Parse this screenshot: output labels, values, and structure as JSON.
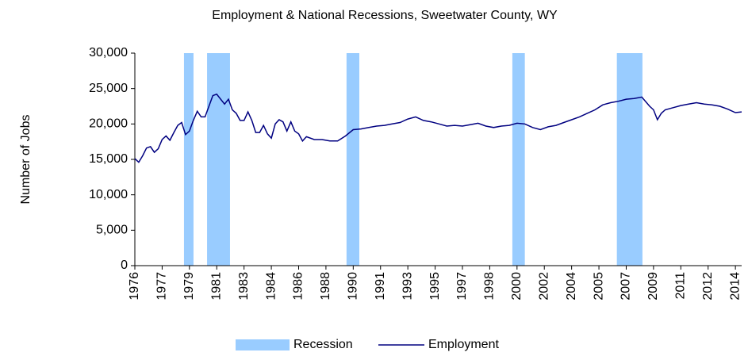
{
  "chart_data": {
    "type": "line",
    "title": "Employment & National Recessions, Sweetwater County, WY",
    "y_label": "Number of Jobs",
    "x": [
      1976.0,
      1976.25,
      1976.5,
      1976.75,
      1977.0,
      1977.25,
      1977.5,
      1977.75,
      1978.0,
      1978.25,
      1978.5,
      1978.75,
      1979.0,
      1979.25,
      1979.5,
      1979.75,
      1980.0,
      1980.25,
      1980.5,
      1980.75,
      1981.0,
      1981.25,
      1981.5,
      1981.75,
      1982.0,
      1982.25,
      1982.5,
      1982.75,
      1983.0,
      1983.25,
      1983.5,
      1983.75,
      1984.0,
      1984.25,
      1984.5,
      1984.75,
      1985.0,
      1985.25,
      1985.5,
      1985.75,
      1986.0,
      1986.25,
      1986.5,
      1986.75,
      1987.0,
      1987.5,
      1988.0,
      1988.5,
      1989.0,
      1989.5,
      1990.0,
      1990.5,
      1991.0,
      1991.5,
      1992.0,
      1992.5,
      1993.0,
      1993.5,
      1994.0,
      1994.5,
      1995.0,
      1995.5,
      1996.0,
      1996.5,
      1997.0,
      1997.5,
      1998.0,
      1998.5,
      1999.0,
      1999.5,
      2000.0,
      2000.5,
      2001.0,
      2001.5,
      2002.0,
      2002.5,
      2003.0,
      2003.5,
      2004.0,
      2004.5,
      2005.0,
      2005.5,
      2006.0,
      2006.5,
      2007.0,
      2007.5,
      2008.0,
      2008.5,
      2009.0,
      2009.25,
      2009.5,
      2009.75,
      2010.0,
      2010.5,
      2011.0,
      2011.5,
      2012.0,
      2012.5,
      2013.0,
      2013.5,
      2014.0,
      2014.5,
      2014.9
    ],
    "series": [
      {
        "name": "Employment",
        "color": "#000080",
        "values": [
          15100,
          14600,
          15500,
          16600,
          16800,
          16000,
          16500,
          17800,
          18300,
          17700,
          18800,
          19800,
          20200,
          18500,
          19000,
          20500,
          21800,
          21000,
          21000,
          22500,
          24000,
          24200,
          23500,
          22800,
          23500,
          22000,
          21500,
          20500,
          20500,
          21700,
          20500,
          18800,
          18800,
          19800,
          18600,
          18000,
          20000,
          20600,
          20300,
          19000,
          20300,
          19000,
          18600,
          17600,
          18200,
          17800,
          17800,
          17600,
          17600,
          18300,
          19200,
          19300,
          19500,
          19700,
          19800,
          20000,
          20200,
          20700,
          21000,
          20500,
          20300,
          20000,
          19700,
          19800,
          19700,
          19900,
          20100,
          19700,
          19500,
          19700,
          19800,
          20100,
          20000,
          19500,
          19200,
          19600,
          19800,
          20200,
          20600,
          21000,
          21500,
          22000,
          22700,
          23000,
          23200,
          23500,
          23600,
          23800,
          22500,
          22000,
          20600,
          21500,
          22000,
          22300,
          22600,
          22800,
          23000,
          22800,
          22700,
          22500,
          22100,
          21600,
          21700
        ]
      }
    ],
    "recessions": {
      "name": "Recession",
      "color": "#99ccff",
      "spans": [
        [
          1979.15,
          1979.76
        ],
        [
          1980.63,
          1982.1
        ],
        [
          1989.57,
          1990.39
        ],
        [
          2000.2,
          2001.0
        ],
        [
          2006.9,
          2008.54
        ]
      ]
    },
    "xlim": [
      1976,
      2014.9
    ],
    "xticks": [
      {
        "value": 1976,
        "label": "1976"
      },
      {
        "value": 1977.75,
        "label": "1977"
      },
      {
        "value": 1979.5,
        "label": "1979"
      },
      {
        "value": 1981.25,
        "label": "1981"
      },
      {
        "value": 1983,
        "label": "1983"
      },
      {
        "value": 1984.75,
        "label": "1984"
      },
      {
        "value": 1986.5,
        "label": "1986"
      },
      {
        "value": 1988.25,
        "label": "1988"
      },
      {
        "value": 1990,
        "label": "1990"
      },
      {
        "value": 1991.75,
        "label": "1991"
      },
      {
        "value": 1993.5,
        "label": "1993"
      },
      {
        "value": 1995.25,
        "label": "1995"
      },
      {
        "value": 1997,
        "label": "1997"
      },
      {
        "value": 1998.75,
        "label": "1998"
      },
      {
        "value": 2000.5,
        "label": "2000"
      },
      {
        "value": 2002.25,
        "label": "2002"
      },
      {
        "value": 2004,
        "label": "2004"
      },
      {
        "value": 2005.75,
        "label": "2005"
      },
      {
        "value": 2007.5,
        "label": "2007"
      },
      {
        "value": 2009.25,
        "label": "2009"
      },
      {
        "value": 2011,
        "label": "2011"
      },
      {
        "value": 2012.75,
        "label": "2012"
      },
      {
        "value": 2014.5,
        "label": "2014"
      }
    ],
    "ylim": [
      0,
      30000
    ],
    "yticks": [
      0,
      {
        "value": 5000,
        "label": "5,000"
      },
      {
        "value": 10000,
        "label": "10,000"
      },
      {
        "value": 15000,
        "label": "15,000"
      },
      {
        "value": 20000,
        "label": "20,000"
      },
      {
        "value": 25000,
        "label": "25,000"
      },
      {
        "value": 30000,
        "label": "30,000"
      }
    ],
    "legend": "bottom"
  }
}
